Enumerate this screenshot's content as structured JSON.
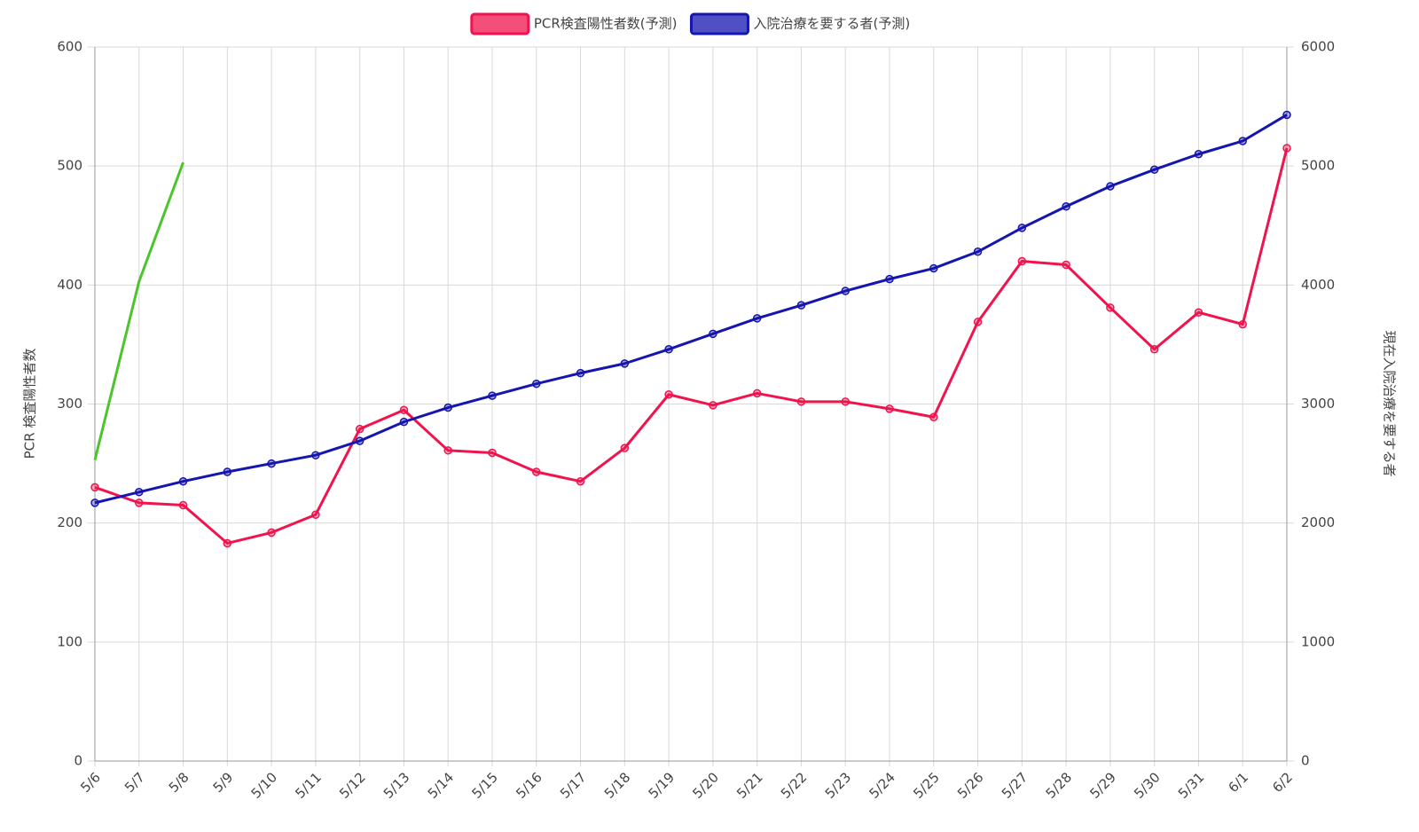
{
  "chart_data": {
    "type": "line",
    "categories": [
      "5/6",
      "5/7",
      "5/8",
      "5/9",
      "5/10",
      "5/11",
      "5/12",
      "5/13",
      "5/14",
      "5/15",
      "5/16",
      "5/17",
      "5/18",
      "5/19",
      "5/20",
      "5/21",
      "5/22",
      "5/23",
      "5/24",
      "5/25",
      "5/26",
      "5/27",
      "5/28",
      "5/29",
      "5/30",
      "5/31",
      "6/1",
      "6/2"
    ],
    "y_label": "PCR 検査陽性者数",
    "y2_label": "現在入院治療を要する者",
    "ylim": [
      0,
      600
    ],
    "yticks": [
      0,
      100,
      200,
      300,
      400,
      500,
      600
    ],
    "y2lim": [
      0,
      6000
    ],
    "y2ticks": [
      0,
      1000,
      2000,
      3000,
      4000,
      5000,
      6000
    ],
    "grid": true,
    "legend": "top",
    "series": [
      {
        "name": "PCR検査陽性者数(予測)",
        "color": "#f0134d",
        "values": [
          230,
          217,
          215,
          183,
          192,
          207,
          279,
          295,
          261,
          259,
          243,
          235,
          263,
          308,
          299,
          309,
          302,
          302,
          296,
          289,
          369,
          420,
          417,
          381,
          346,
          377,
          367,
          515
        ]
      },
      {
        "name": "入院治療を要する者(予測)",
        "color": "#1515b0",
        "axis": "y2",
        "values": [
          2170,
          2260,
          2350,
          2430,
          2500,
          2570,
          2690,
          2850,
          2970,
          3070,
          3170,
          3260,
          3340,
          3460,
          3590,
          3720,
          3830,
          3950,
          4050,
          4140,
          4280,
          4480,
          4660,
          4830,
          4970,
          5100,
          5210,
          5430
        ]
      },
      {
        "color": "#4cc42c",
        "values": [
          253,
          403,
          503,
          null,
          null,
          null,
          null,
          null,
          null,
          null,
          null,
          null,
          null,
          null,
          null,
          null,
          null,
          null,
          null,
          null,
          null,
          null,
          null,
          null,
          null,
          null,
          null,
          null
        ]
      }
    ]
  }
}
